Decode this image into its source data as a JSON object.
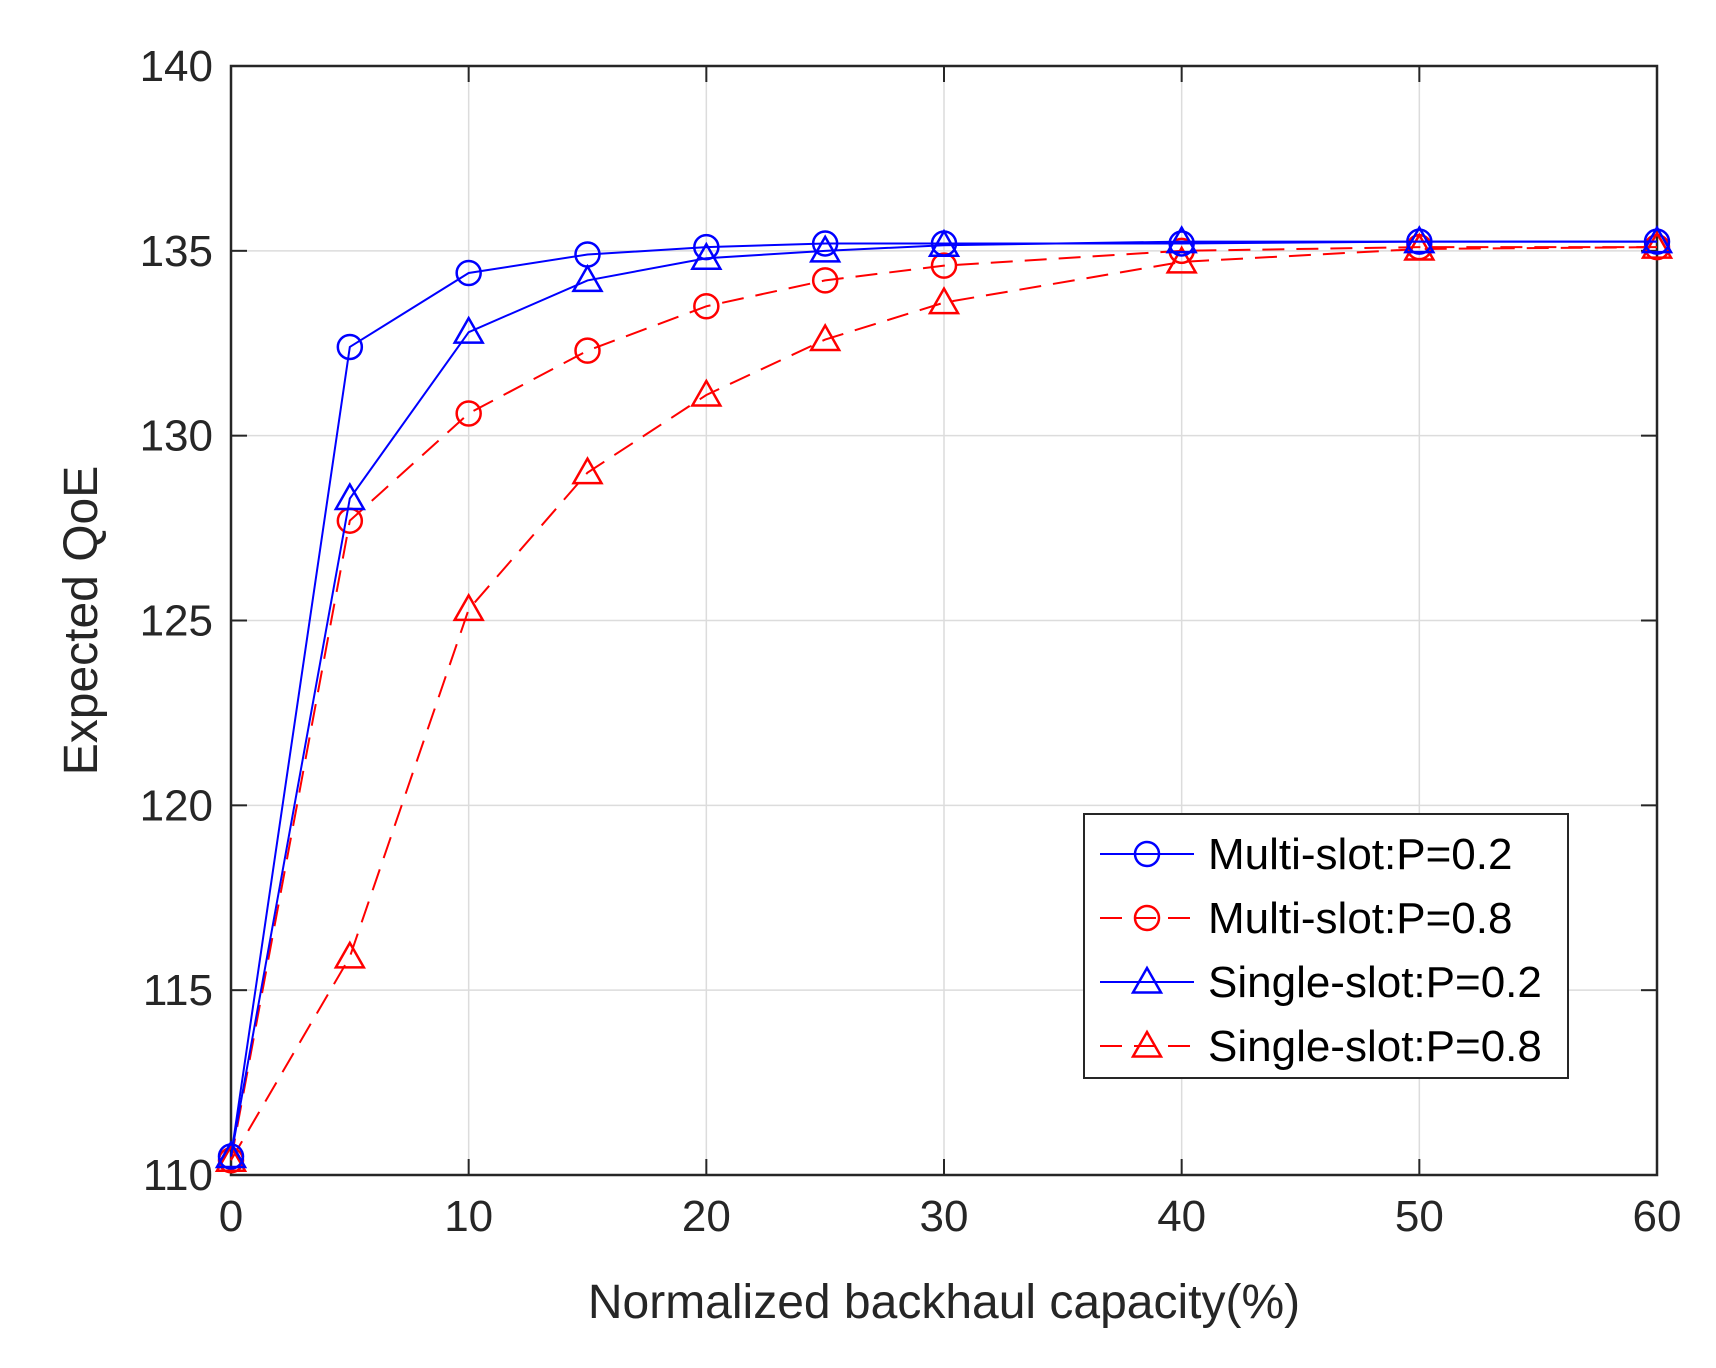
{
  "chart_data": {
    "type": "line",
    "title": "",
    "xlabel": "Normalized backhaul capacity(%)",
    "ylabel": "Expected QoE",
    "xlim": [
      0,
      60
    ],
    "ylim": [
      110,
      140
    ],
    "xticks": [
      0,
      10,
      20,
      30,
      40,
      50,
      60
    ],
    "yticks": [
      110,
      115,
      120,
      125,
      130,
      135,
      140
    ],
    "grid": true,
    "legend_position": "lower-right",
    "x": [
      0,
      5,
      10,
      15,
      20,
      25,
      30,
      40,
      50,
      60
    ],
    "series": [
      {
        "name": "Multi-slot:P=0.2",
        "color": "#0000ff",
        "linestyle": "solid",
        "marker": "circle",
        "values": [
          110.5,
          132.4,
          134.4,
          134.9,
          135.1,
          135.2,
          135.2,
          135.2,
          135.25,
          135.25
        ]
      },
      {
        "name": "Multi-slot:P=0.8",
        "color": "#ff0000",
        "linestyle": "dashed",
        "marker": "circle",
        "values": [
          110.4,
          127.7,
          130.6,
          132.3,
          133.5,
          134.2,
          134.6,
          135.0,
          135.1,
          135.1
        ]
      },
      {
        "name": "Single-slot:P=0.2",
        "color": "#0000ff",
        "linestyle": "solid",
        "marker": "triangle",
        "values": [
          110.5,
          128.3,
          132.8,
          134.2,
          134.8,
          135.0,
          135.15,
          135.25,
          135.25,
          135.25
        ]
      },
      {
        "name": "Single-slot:P=0.8",
        "color": "#ff0000",
        "linestyle": "dashed",
        "marker": "triangle",
        "values": [
          110.4,
          115.9,
          125.3,
          129.0,
          131.1,
          132.6,
          133.6,
          134.7,
          135.05,
          135.1
        ]
      }
    ]
  }
}
